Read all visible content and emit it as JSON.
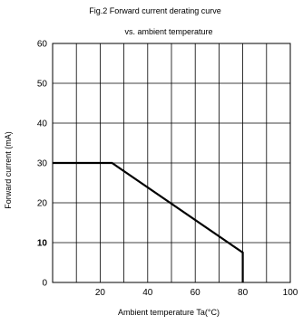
{
  "chart_data": {
    "type": "line",
    "title": "Fig.2  Forward current derating curve",
    "subtitle": "vs. ambient temperature",
    "xlabel": "Ambient temperature Ta(°C)",
    "ylabel": "Forward current (mA)",
    "xlim": [
      0,
      100
    ],
    "ylim": [
      0,
      60
    ],
    "xticks": [
      20,
      40,
      60,
      80,
      100
    ],
    "yticks": [
      0,
      10,
      20,
      30,
      40,
      50,
      60
    ],
    "bold_ytick": 10,
    "grid": true,
    "series": [
      {
        "x": [
          0,
          25,
          80,
          80
        ],
        "y": [
          30,
          30,
          7.5,
          0
        ]
      }
    ]
  },
  "colors": {
    "line": "#000000",
    "grid": "#000000",
    "background": "#ffffff"
  }
}
